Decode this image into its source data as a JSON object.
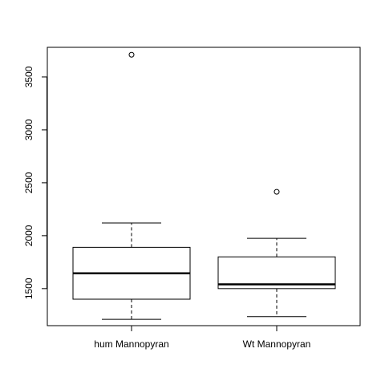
{
  "chart_data": {
    "type": "boxplot",
    "title": "",
    "xlabel": "",
    "ylabel": "",
    "categories": [
      "hum Mannopyran",
      "Wt Mannopyran"
    ],
    "ylim": [
      1150,
      3780
    ],
    "yticks": [
      1500,
      2000,
      2500,
      3000,
      3500
    ],
    "ytick_labels": [
      "1500",
      "2000",
      "2500",
      "3000",
      "3500"
    ],
    "boxes": [
      {
        "name": "hum Mannopyran",
        "whisker_low": 1210,
        "q1": 1400,
        "median": 1645,
        "q3": 1890,
        "whisker_high": 2120,
        "outliers": [
          3710
        ]
      },
      {
        "name": "Wt Mannopyran",
        "whisker_low": 1235,
        "q1": 1500,
        "median": 1540,
        "q3": 1800,
        "whisker_high": 1975,
        "outliers": [
          2415
        ]
      }
    ],
    "grid": false,
    "colors": {
      "box_fill": "#ffffff",
      "stroke": "#000000"
    }
  }
}
